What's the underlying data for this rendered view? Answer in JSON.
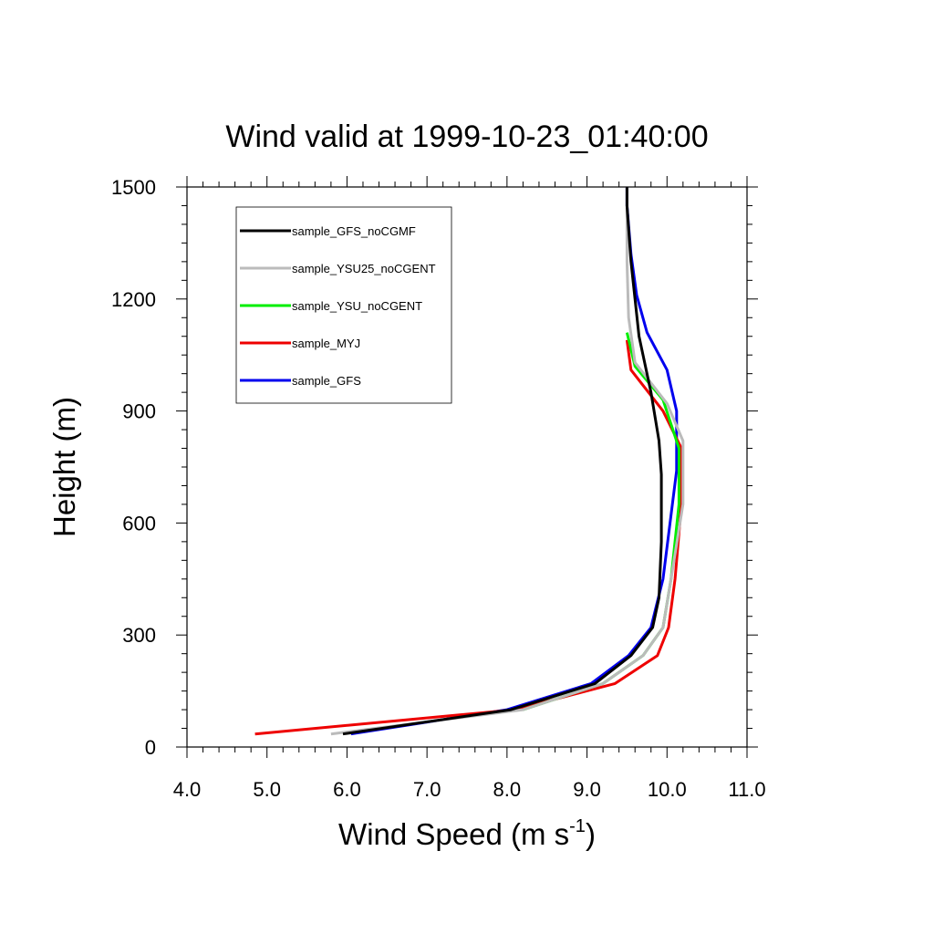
{
  "chart_data": {
    "type": "line",
    "title": "Wind valid at 1999-10-23_01:40:00",
    "xlabel_main": "Wind Speed (m s",
    "xlabel_sup": "-1",
    "xlabel_end": ")",
    "ylabel": "Height (m)",
    "xlim": [
      4.0,
      11.0
    ],
    "ylim": [
      0,
      1500
    ],
    "x_ticks": [
      "4.0",
      "5.0",
      "6.0",
      "7.0",
      "8.0",
      "9.0",
      "10.0",
      "11.0"
    ],
    "y_ticks": [
      "0",
      "300",
      "600",
      "900",
      "1200",
      "1500"
    ],
    "grid": false,
    "legend_position": "top-left",
    "series": [
      {
        "name": "sample_GFS_noCGMF",
        "color": "#000000",
        "x": [
          5.95,
          8.05,
          9.1,
          9.55,
          9.82,
          9.9,
          9.93,
          9.93,
          9.9,
          9.8,
          9.65,
          9.55,
          9.5,
          9.5
        ],
        "y": [
          35,
          100,
          170,
          245,
          320,
          400,
          550,
          730,
          820,
          950,
          1100,
          1300,
          1450,
          1500
        ]
      },
      {
        "name": "sample_YSU25_noCGENT",
        "color": "#bbbbbb",
        "x": [
          5.8,
          8.2,
          9.2,
          9.7,
          9.95,
          10.05,
          10.2,
          10.2,
          10.0,
          9.6,
          9.52,
          9.5,
          9.5
        ],
        "y": [
          35,
          100,
          170,
          245,
          320,
          450,
          650,
          820,
          920,
          1030,
          1150,
          1300,
          1500
        ]
      },
      {
        "name": "sample_YSU_noCGENT",
        "color": "#00ee00",
        "x": [
          8.2,
          9.2,
          9.7,
          9.95,
          10.05,
          10.15,
          10.15,
          9.95,
          9.6,
          9.5
        ],
        "y": [
          100,
          170,
          245,
          320,
          450,
          650,
          800,
          930,
          1020,
          1110
        ]
      },
      {
        "name": "sample_MYJ",
        "color": "#ee0000",
        "x": [
          4.85,
          8.1,
          9.35,
          9.88,
          10.02,
          10.1,
          10.18,
          10.18,
          9.95,
          9.55,
          9.5
        ],
        "y": [
          35,
          100,
          170,
          245,
          320,
          450,
          650,
          800,
          900,
          1010,
          1090
        ]
      },
      {
        "name": "sample_GFS",
        "color": "#0000ee",
        "x": [
          6.05,
          8.0,
          9.05,
          9.52,
          9.8,
          9.95,
          10.12,
          10.12,
          10.0,
          9.75,
          9.62,
          9.55,
          9.5,
          9.5
        ],
        "y": [
          35,
          100,
          170,
          245,
          320,
          450,
          740,
          900,
          1010,
          1110,
          1210,
          1320,
          1450,
          1500
        ]
      }
    ]
  }
}
